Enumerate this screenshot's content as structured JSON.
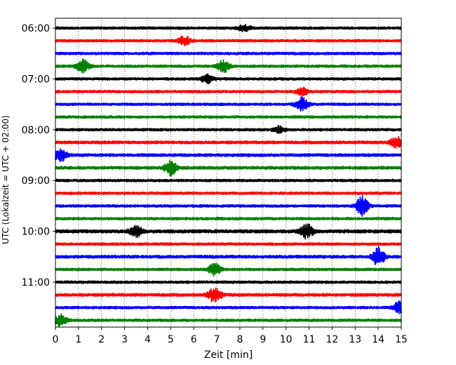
{
  "chart_data": {
    "type": "line",
    "subtype": "helicorder",
    "title": "",
    "xlabel": "Zeit  [min]",
    "ylabel": "UTC (Lokalzeit = UTC + 02:00)",
    "xlim": [
      0,
      15
    ],
    "x_ticks": [
      "0",
      "1",
      "2",
      "3",
      "4",
      "5",
      "6",
      "7",
      "8",
      "9",
      "10",
      "11",
      "12",
      "13",
      "14",
      "15"
    ],
    "y_tick_labels": [
      "06:00",
      "07:00",
      "08:00",
      "09:00",
      "10:00",
      "11:00"
    ],
    "grid": "vertical dotted lines at each minute",
    "colors": [
      "#000000",
      "#ff0000",
      "#0000ff",
      "#008000"
    ],
    "traces": [
      {
        "start": "06:00",
        "color": "#000000",
        "amplitude": 0.3,
        "events": [
          {
            "t": 8.2,
            "a": 0.55
          }
        ]
      },
      {
        "start": "06:15",
        "color": "#ff0000",
        "amplitude": 0.3,
        "events": [
          {
            "t": 5.6,
            "a": 0.8
          }
        ]
      },
      {
        "start": "06:30",
        "color": "#0000ff",
        "amplitude": 0.3,
        "events": []
      },
      {
        "start": "06:45",
        "color": "#008000",
        "amplitude": 0.3,
        "events": [
          {
            "t": 1.2,
            "a": 1.1
          },
          {
            "t": 7.3,
            "a": 1.0
          }
        ]
      },
      {
        "start": "07:00",
        "color": "#000000",
        "amplitude": 0.3,
        "events": [
          {
            "t": 6.6,
            "a": 0.7
          }
        ]
      },
      {
        "start": "07:15",
        "color": "#ff0000",
        "amplitude": 0.3,
        "events": [
          {
            "t": 10.7,
            "a": 0.6
          }
        ]
      },
      {
        "start": "07:30",
        "color": "#0000ff",
        "amplitude": 0.3,
        "events": [
          {
            "t": 10.7,
            "a": 1.2
          }
        ]
      },
      {
        "start": "07:45",
        "color": "#008000",
        "amplitude": 0.3,
        "events": []
      },
      {
        "start": "08:00",
        "color": "#000000",
        "amplitude": 0.3,
        "events": [
          {
            "t": 9.7,
            "a": 0.5
          }
        ]
      },
      {
        "start": "08:15",
        "color": "#ff0000",
        "amplitude": 0.35,
        "events": [
          {
            "t": 14.8,
            "a": 0.9
          }
        ]
      },
      {
        "start": "08:30",
        "color": "#0000ff",
        "amplitude": 0.35,
        "events": [
          {
            "t": 0.2,
            "a": 1.1
          }
        ]
      },
      {
        "start": "08:45",
        "color": "#008000",
        "amplitude": 0.35,
        "events": [
          {
            "t": 5.0,
            "a": 1.3
          }
        ]
      },
      {
        "start": "09:00",
        "color": "#000000",
        "amplitude": 0.3,
        "events": []
      },
      {
        "start": "09:15",
        "color": "#ff0000",
        "amplitude": 0.3,
        "events": []
      },
      {
        "start": "09:30",
        "color": "#0000ff",
        "amplitude": 0.3,
        "events": [
          {
            "t": 13.3,
            "a": 1.7
          }
        ]
      },
      {
        "start": "09:45",
        "color": "#008000",
        "amplitude": 0.3,
        "events": []
      },
      {
        "start": "10:00",
        "color": "#000000",
        "amplitude": 0.4,
        "events": [
          {
            "t": 3.5,
            "a": 0.9
          },
          {
            "t": 10.9,
            "a": 1.2
          }
        ]
      },
      {
        "start": "10:15",
        "color": "#ff0000",
        "amplitude": 0.3,
        "events": []
      },
      {
        "start": "10:30",
        "color": "#0000ff",
        "amplitude": 0.35,
        "events": [
          {
            "t": 14.0,
            "a": 1.6
          }
        ]
      },
      {
        "start": "10:45",
        "color": "#008000",
        "amplitude": 0.3,
        "events": [
          {
            "t": 6.9,
            "a": 1.0
          }
        ]
      },
      {
        "start": "11:00",
        "color": "#000000",
        "amplitude": 0.3,
        "events": []
      },
      {
        "start": "11:15",
        "color": "#ff0000",
        "amplitude": 0.35,
        "events": [
          {
            "t": 6.9,
            "a": 1.3
          }
        ]
      },
      {
        "start": "11:30",
        "color": "#0000ff",
        "amplitude": 0.3,
        "events": [
          {
            "t": 14.9,
            "a": 1.0
          }
        ]
      },
      {
        "start": "11:45",
        "color": "#008000",
        "amplitude": 0.3,
        "events": [
          {
            "t": 0.2,
            "a": 1.0
          }
        ]
      }
    ]
  }
}
